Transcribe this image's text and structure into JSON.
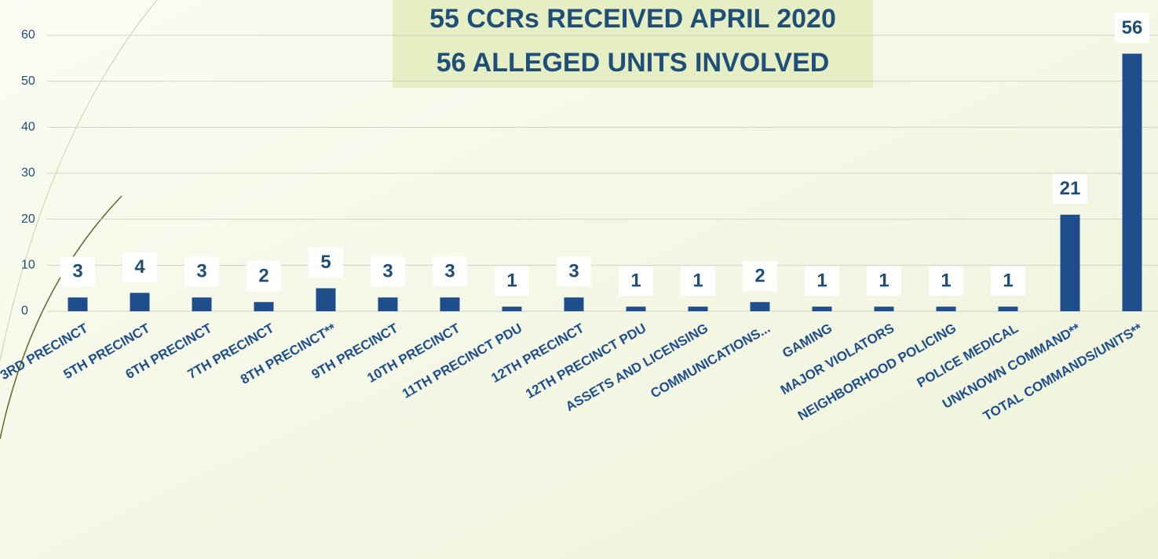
{
  "chart_data": {
    "type": "bar",
    "title": [
      "55 CCRs RECEIVED APRIL 2020",
      "56 ALLEGED UNITS INVOLVED"
    ],
    "categories": [
      "3RD PRECINCT",
      "5TH PRECINCT",
      "6TH PRECINCT",
      "7TH PRECINCT",
      "8TH PRECINCT**",
      "9TH PRECINCT",
      "10TH PRECINCT",
      "11TH PRECINCT PDU",
      "12TH PRECINCT",
      "12TH PRECINCT PDU",
      "ASSETS AND LICENSING",
      "COMMUNICATIONS...",
      "GAMING",
      "MAJOR VIOLATORS",
      "NEIGHBORHOOD POLICING",
      "POLICE MEDICAL",
      "UNKNOWN COMMAND**",
      "TOTAL COMMANDS/UNITS**"
    ],
    "values": [
      3,
      4,
      3,
      2,
      5,
      3,
      3,
      1,
      3,
      1,
      1,
      2,
      1,
      1,
      1,
      1,
      21,
      56
    ],
    "color": "#1f4e8c",
    "ylim": [
      0,
      60
    ],
    "yticks": [
      0,
      10,
      20,
      30,
      40,
      50,
      60
    ],
    "grid": true
  }
}
